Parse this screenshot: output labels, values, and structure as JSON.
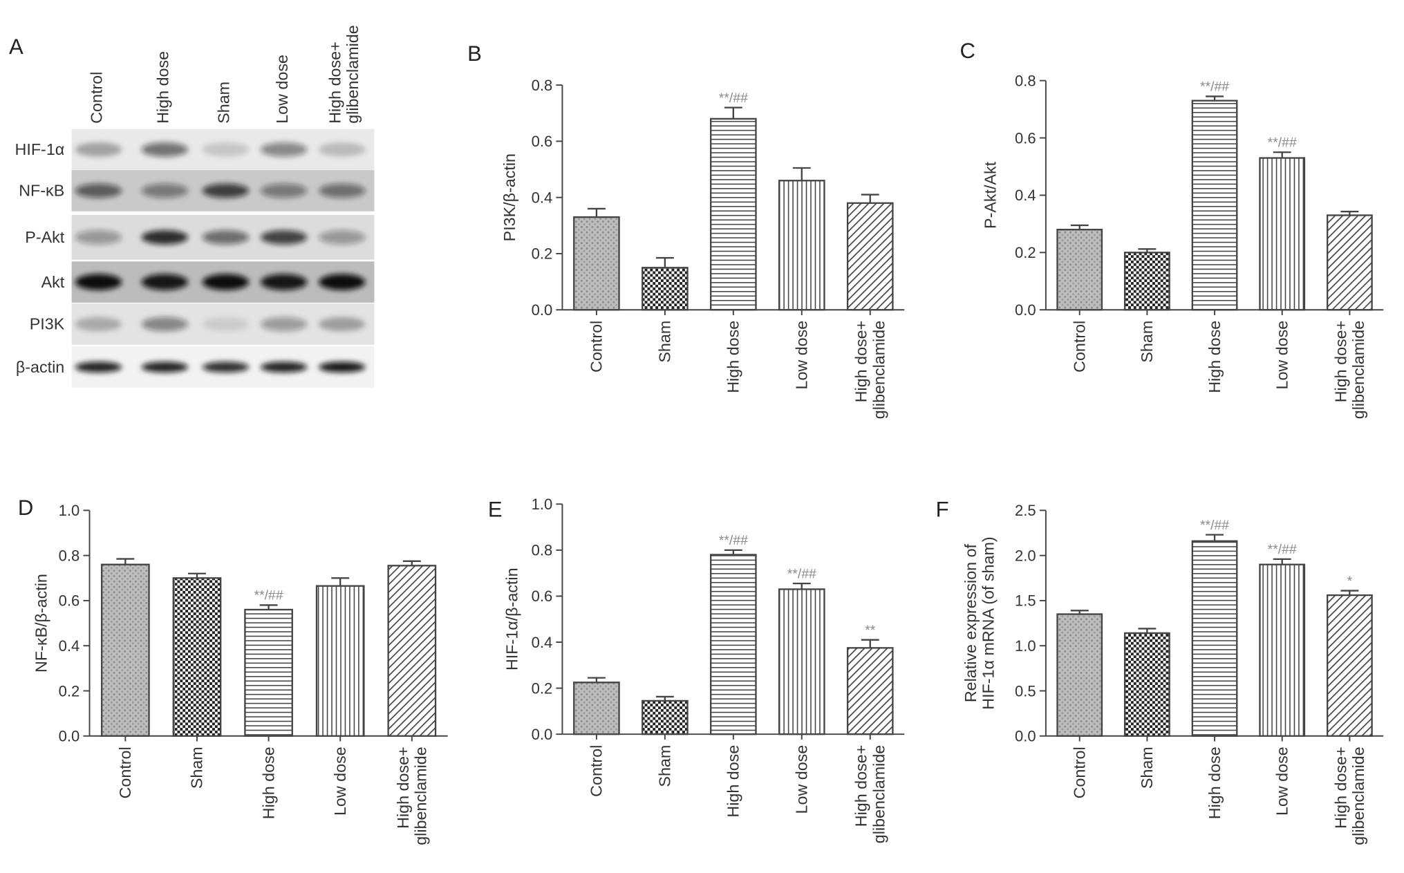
{
  "blot": {
    "label": "A",
    "lanes": [
      "Control",
      "High dose",
      "Sham",
      "Low dose",
      "High dose+\nglibenclamide"
    ],
    "rows": [
      "HIF-1α",
      "NF-κB",
      "P-Akt",
      "Akt",
      "PI3K",
      "β-actin"
    ]
  },
  "chart_data": [
    {
      "type": "bar",
      "label": "B",
      "ylabel": "PI3K/β-actin",
      "categories": [
        "Control",
        "Sham",
        "High dose",
        "Low dose",
        "High dose+\nglibenclamide"
      ],
      "values": [
        0.33,
        0.15,
        0.68,
        0.46,
        0.38
      ],
      "errors": [
        0.03,
        0.035,
        0.04,
        0.045,
        0.03
      ],
      "annotations": [
        null,
        null,
        "**/##",
        null,
        null
      ],
      "ylim": [
        0,
        0.8
      ],
      "yticks": [
        {
          "value": 0,
          "label": "0.0"
        },
        {
          "value": 0.2,
          "label": "0.2"
        },
        {
          "value": 0.4,
          "label": "0.4"
        },
        {
          "value": 0.6,
          "label": "0.6"
        },
        {
          "value": 0.8,
          "label": "0.8"
        }
      ]
    },
    {
      "type": "bar",
      "label": "C",
      "ylabel": "P-Akt/Akt",
      "categories": [
        "Control",
        "Sham",
        "High dose",
        "Low dose",
        "High dose+\nglibenclamide"
      ],
      "values": [
        0.28,
        0.2,
        0.73,
        0.53,
        0.33
      ],
      "errors": [
        0.015,
        0.012,
        0.015,
        0.02,
        0.013
      ],
      "annotations": [
        null,
        null,
        "**/##",
        "**/##",
        null
      ],
      "ylim": [
        0,
        0.8
      ],
      "yticks": [
        {
          "value": 0,
          "label": "0.0"
        },
        {
          "value": 0.2,
          "label": "0.2"
        },
        {
          "value": 0.4,
          "label": "0.4"
        },
        {
          "value": 0.6,
          "label": "0.6"
        },
        {
          "value": 0.8,
          "label": "0.8"
        }
      ]
    },
    {
      "type": "bar",
      "label": "D",
      "ylabel": "NF-κB/β-actin",
      "categories": [
        "Control",
        "Sham",
        "High dose",
        "Low dose",
        "High dose+\nglibenclamide"
      ],
      "values": [
        0.76,
        0.7,
        0.56,
        0.665,
        0.755
      ],
      "errors": [
        0.025,
        0.02,
        0.02,
        0.035,
        0.02
      ],
      "annotations": [
        null,
        null,
        "**/##",
        null,
        null
      ],
      "ylim": [
        0,
        1
      ],
      "yticks": [
        {
          "value": 0,
          "label": "0.0"
        },
        {
          "value": 0.2,
          "label": "0.2"
        },
        {
          "value": 0.4,
          "label": "0.4"
        },
        {
          "value": 0.6,
          "label": "0.6"
        },
        {
          "value": 0.8,
          "label": "0.8"
        },
        {
          "value": 1,
          "label": "1.0"
        }
      ]
    },
    {
      "type": "bar",
      "label": "E",
      "ylabel": "HIF-1α/β-actin",
      "categories": [
        "Control",
        "Sham",
        "High dose",
        "Low dose",
        "High dose+\nglibenclamide"
      ],
      "values": [
        0.225,
        0.145,
        0.78,
        0.63,
        0.375
      ],
      "errors": [
        0.02,
        0.018,
        0.02,
        0.025,
        0.035
      ],
      "annotations": [
        null,
        null,
        "**/##",
        "**/##",
        "**"
      ],
      "ylim": [
        0,
        1
      ],
      "yticks": [
        {
          "value": 0,
          "label": "0.0"
        },
        {
          "value": 0.2,
          "label": "0.2"
        },
        {
          "value": 0.4,
          "label": "0.4"
        },
        {
          "value": 0.6,
          "label": "0.6"
        },
        {
          "value": 0.8,
          "label": "0.8"
        },
        {
          "value": 1,
          "label": "1.0"
        }
      ]
    },
    {
      "type": "bar",
      "label": "F",
      "ylabel": "Relative expression of\nHIF-1α mRNA (of sham)",
      "categories": [
        "Control",
        "Sham",
        "High dose",
        "Low dose",
        "High dose+\nglibenclamide"
      ],
      "values": [
        1.35,
        1.14,
        2.16,
        1.9,
        1.56
      ],
      "errors": [
        0.04,
        0.05,
        0.07,
        0.06,
        0.05
      ],
      "annotations": [
        null,
        null,
        "**/##",
        "**/##",
        "*"
      ],
      "ylim": [
        0,
        2.5
      ],
      "yticks": [
        {
          "value": 0,
          "label": "0.0"
        },
        {
          "value": 0.5,
          "label": "0.5"
        },
        {
          "value": 1,
          "label": "1.0"
        },
        {
          "value": 1.5,
          "label": "1.5"
        },
        {
          "value": 2,
          "label": "2.0"
        },
        {
          "value": 2.5,
          "label": "2.5"
        }
      ]
    }
  ]
}
